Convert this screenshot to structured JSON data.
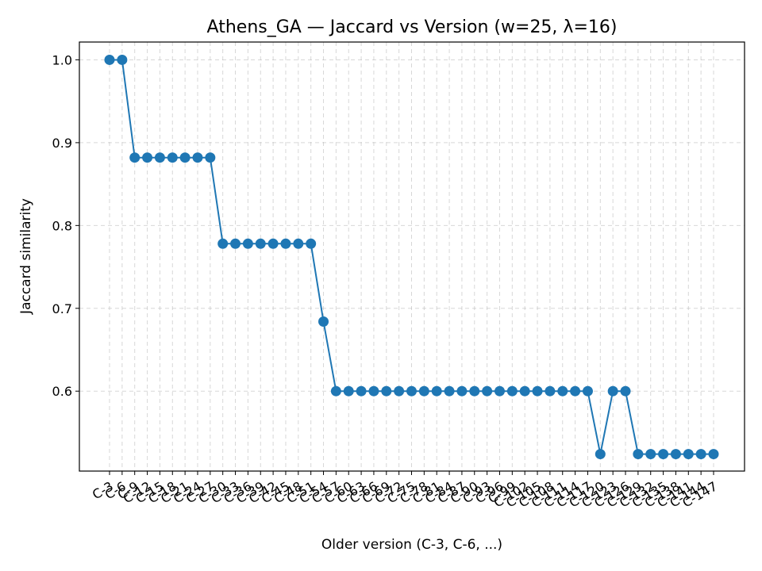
{
  "chart_data": {
    "type": "line",
    "title": "Athens_GA — Jaccard vs Version (w=25, λ=16)",
    "xlabel": "Older version (C-3, C-6, ...)",
    "ylabel": "Jaccard similarity",
    "categories": [
      "C-3",
      "C-6",
      "C-9",
      "C-12",
      "C-15",
      "C-18",
      "C-21",
      "C-24",
      "C-27",
      "C-30",
      "C-33",
      "C-36",
      "C-39",
      "C-42",
      "C-45",
      "C-48",
      "C-51",
      "C-54",
      "C-57",
      "C-60",
      "C-63",
      "C-66",
      "C-69",
      "C-72",
      "C-75",
      "C-78",
      "C-81",
      "C-84",
      "C-87",
      "C-90",
      "C-93",
      "C-96",
      "C-99",
      "C-102",
      "C-105",
      "C-108",
      "C-111",
      "C-114",
      "C-117",
      "C-120",
      "C-123",
      "C-126",
      "C-129",
      "C-132",
      "C-135",
      "C-138",
      "C-141",
      "C-144",
      "C-147"
    ],
    "series": [
      {
        "values": [
          1.0,
          1.0,
          0.882,
          0.882,
          0.882,
          0.882,
          0.882,
          0.882,
          0.882,
          0.778,
          0.778,
          0.778,
          0.778,
          0.778,
          0.778,
          0.778,
          0.778,
          0.684,
          0.6,
          0.6,
          0.6,
          0.6,
          0.6,
          0.6,
          0.6,
          0.6,
          0.6,
          0.6,
          0.6,
          0.6,
          0.6,
          0.6,
          0.6,
          0.6,
          0.6,
          0.6,
          0.6,
          0.6,
          0.6,
          0.524,
          0.6,
          0.6,
          0.524,
          0.524,
          0.524,
          0.524,
          0.524,
          0.524,
          0.524
        ],
        "color": "#1f77b4"
      }
    ],
    "yticks": [
      "0.6",
      "0.7",
      "0.8",
      "0.9",
      "1.0"
    ],
    "ytick_values": [
      0.6,
      0.7,
      0.8,
      0.9,
      1.0
    ],
    "ylim": [
      0.5035,
      1.0215
    ],
    "grid": true
  }
}
